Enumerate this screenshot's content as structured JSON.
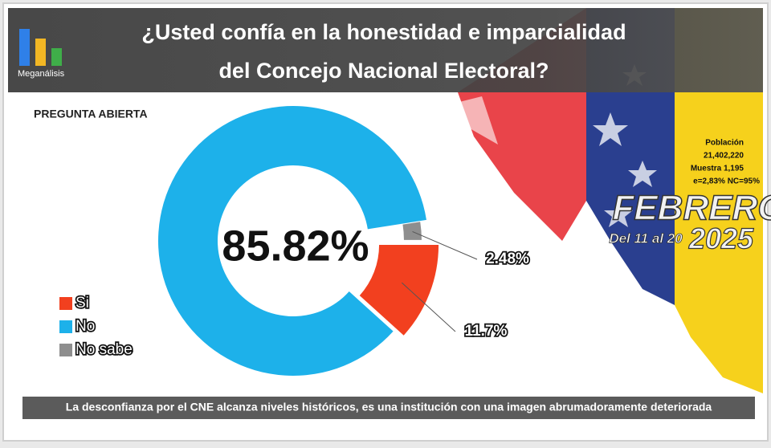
{
  "brand": "Meganálisis",
  "chart_data": {
    "type": "donut",
    "title": [
      "¿Usted confía en la honestidad e imparcialidad",
      "del Concejo Nacional Electoral?"
    ],
    "subtitle": "PREGUNTA ABIERTA",
    "categories": [
      "Si",
      "No",
      "No sabe"
    ],
    "values": [
      11.7,
      85.82,
      2.48
    ],
    "value_labels": [
      "11.7%",
      "85.82%",
      "2.48%"
    ],
    "colors": [
      "#f2401f",
      "#1db1ea",
      "#8e8e8e"
    ],
    "legend": "left"
  },
  "sample": {
    "population_label": "Población",
    "population": "21,402,220",
    "sample": "Muestra 1,195",
    "error": "e=2,83%  NC=95%"
  },
  "period": {
    "month": "FEBRERO",
    "range": "Del 11 al 20",
    "year": "2025"
  },
  "footer": "La desconfianza por el CNE alcanza niveles históricos, es una institución con una imagen abrumadoramente deteriorada"
}
